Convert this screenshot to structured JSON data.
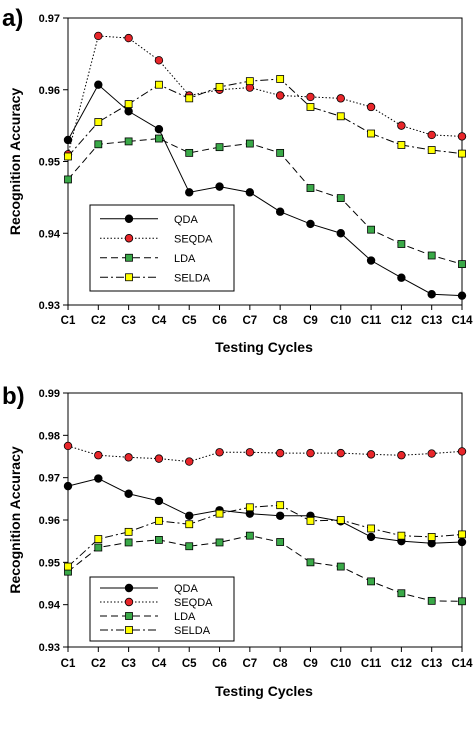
{
  "colors": {
    "axis": "#000000",
    "qda": "#000000",
    "seqda_fill": "#e8262a",
    "lda_fill": "#3aa948",
    "selda_fill": "#ffff00",
    "marker_edge": "#000000"
  },
  "chart_data": [
    {
      "panel_label": "a)",
      "type": "line",
      "title": "",
      "xlabel": "Testing Cycles",
      "ylabel": "Recognition Accuracy",
      "categories": [
        "C1",
        "C2",
        "C3",
        "C4",
        "C5",
        "C6",
        "C7",
        "C8",
        "C9",
        "C10",
        "C11",
        "C12",
        "C13",
        "C14"
      ],
      "ylim": [
        0.93,
        0.97
      ],
      "yticks": [
        0.93,
        0.94,
        0.95,
        0.96,
        0.97
      ],
      "ytick_labels": [
        "0.93",
        "0.94",
        "0.95",
        "0.96",
        "0.97"
      ],
      "grid": false,
      "legend_position": "bottom-left",
      "series": [
        {
          "name": "QDA",
          "marker": "circle",
          "fill": "#000000",
          "dash": "solid",
          "values": [
            0.953,
            0.9607,
            0.957,
            0.9545,
            0.9457,
            0.9465,
            0.9457,
            0.943,
            0.9413,
            0.94,
            0.9362,
            0.9338,
            0.9315,
            0.9313
          ]
        },
        {
          "name": "SEQDA",
          "marker": "circle",
          "fill": "#e8262a",
          "dash": "dotted",
          "values": [
            0.951,
            0.9675,
            0.9672,
            0.9641,
            0.9592,
            0.96,
            0.9603,
            0.9592,
            0.959,
            0.9588,
            0.9576,
            0.955,
            0.9537,
            0.9535
          ]
        },
        {
          "name": "LDA",
          "marker": "square",
          "fill": "#3aa948",
          "dash": "dashed",
          "values": [
            0.9475,
            0.9524,
            0.9528,
            0.9532,
            0.9512,
            0.952,
            0.9525,
            0.9512,
            0.9463,
            0.9449,
            0.9405,
            0.9385,
            0.9369,
            0.9357
          ]
        },
        {
          "name": "SELDA",
          "marker": "square",
          "fill": "#ffff00",
          "dash": "dashdot",
          "values": [
            0.9507,
            0.9555,
            0.958,
            0.9607,
            0.9588,
            0.9604,
            0.9612,
            0.9615,
            0.9576,
            0.9563,
            0.9539,
            0.9523,
            0.9516,
            0.9511
          ]
        }
      ]
    },
    {
      "panel_label": "b)",
      "type": "line",
      "title": "",
      "xlabel": "Testing Cycles",
      "ylabel": "Recognition Accuracy",
      "categories": [
        "C1",
        "C2",
        "C3",
        "C4",
        "C5",
        "C6",
        "C7",
        "C8",
        "C9",
        "C10",
        "C11",
        "C12",
        "C13",
        "C14"
      ],
      "ylim": [
        0.93,
        0.99
      ],
      "yticks": [
        0.93,
        0.94,
        0.95,
        0.96,
        0.97,
        0.98,
        0.99
      ],
      "ytick_labels": [
        "0.93",
        "0.94",
        "0.95",
        "0.96",
        "0.97",
        "0.98",
        "0.99"
      ],
      "grid": false,
      "legend_position": "bottom-left",
      "series": [
        {
          "name": "QDA",
          "marker": "circle",
          "fill": "#000000",
          "dash": "solid",
          "values": [
            0.968,
            0.9698,
            0.9662,
            0.9645,
            0.961,
            0.9623,
            0.9615,
            0.961,
            0.961,
            0.9597,
            0.956,
            0.955,
            0.9545,
            0.9548
          ]
        },
        {
          "name": "SEQDA",
          "marker": "circle",
          "fill": "#e8262a",
          "dash": "dotted",
          "values": [
            0.9775,
            0.9753,
            0.9748,
            0.9745,
            0.9738,
            0.976,
            0.976,
            0.9758,
            0.9758,
            0.9758,
            0.9755,
            0.9753,
            0.9757,
            0.9762
          ]
        },
        {
          "name": "LDA",
          "marker": "square",
          "fill": "#3aa948",
          "dash": "dashed",
          "values": [
            0.9478,
            0.9535,
            0.9547,
            0.9553,
            0.9538,
            0.9547,
            0.9563,
            0.9548,
            0.95,
            0.949,
            0.9455,
            0.9427,
            0.9409,
            0.9408
          ]
        },
        {
          "name": "SELDA",
          "marker": "square",
          "fill": "#ffff00",
          "dash": "dashdot",
          "values": [
            0.949,
            0.9555,
            0.9572,
            0.9598,
            0.959,
            0.9615,
            0.963,
            0.9635,
            0.9598,
            0.96,
            0.958,
            0.9563,
            0.956,
            0.9566
          ]
        }
      ]
    }
  ]
}
